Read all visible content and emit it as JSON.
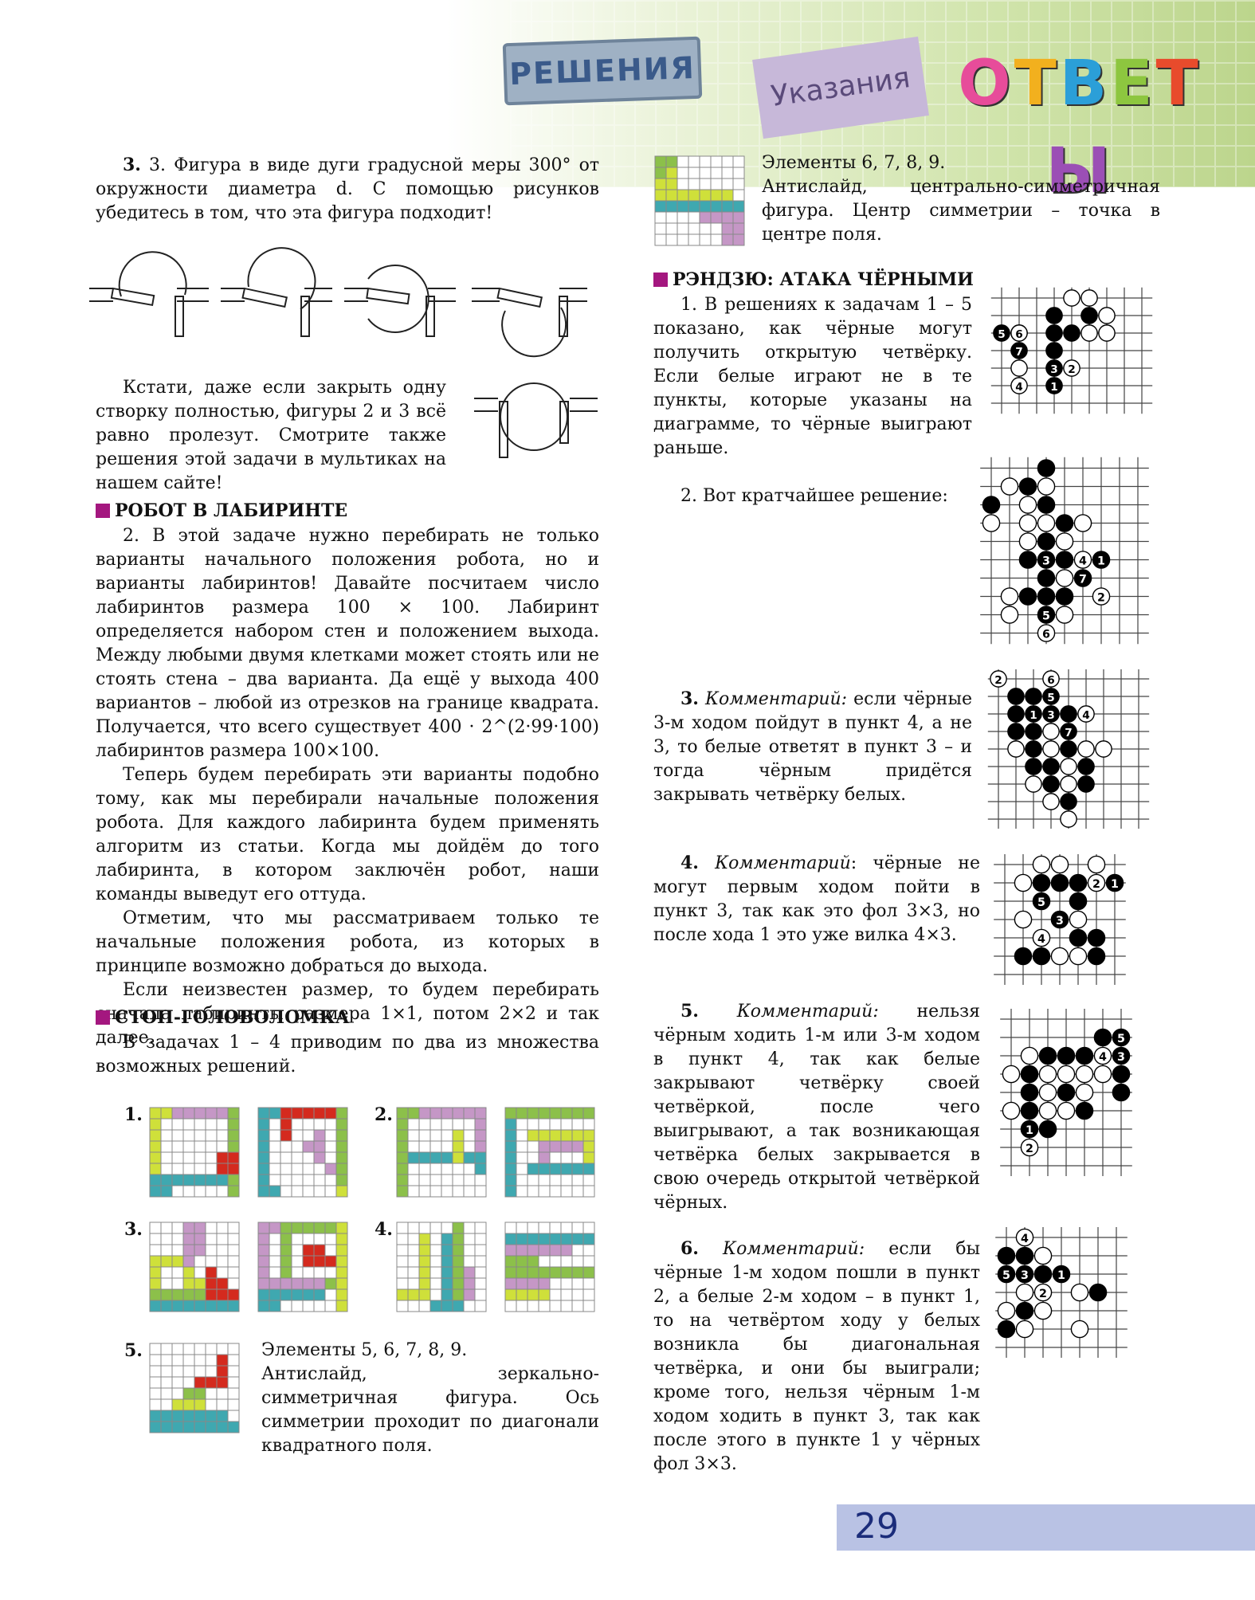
{
  "header": {
    "badge_solutions": "РЕШЕНИЯ",
    "badge_hints": "Указания",
    "badge_answers": "ОТВЕТЫ",
    "answer_letters": [
      "О",
      "Т",
      "В",
      "Е",
      "Т",
      "Ы"
    ],
    "answer_colors": [
      "#e74c9a",
      "#f2b01e",
      "#2b9fd8",
      "#8dc63f",
      "#e84b2c",
      "#9b4fb5"
    ]
  },
  "left": {
    "p3": "3. Фигура в виде дуги градусной меры 300° от окружности диаметра d. С помощью рисунков убедитесь в том, что эта фигура подходит!",
    "p3b": "Кстати, даже если закрыть одну створку полностью, фигуры 2 и 3 всё равно пролезут. Смотрите также решения этой задачи в мультиках на нашем сайте!",
    "sec_robot": "РОБОТ В ЛАБИРИНТЕ",
    "robot_p1": "2. В этой задаче нужно перебирать не только варианты начального положения робота, но и варианты лабиринтов! Давайте посчитаем число лабиринтов размера 100 × 100. Лабиринт определяется набором стен и положением выхода. Между любыми двумя клетками может стоять или не стоять стена – два варианта. Да ещё у выхода 400 вариантов – любой из отрезков на границе квадрата. Получается, что всего существует 400 · 2^(2·99·100) лабиринтов размера 100×100.",
    "robot_p2": "Теперь будем перебирать эти варианты подобно тому, как мы перебирали начальные положения робота. Для каждого лабиринта будем применять алгоритм из статьи. Когда мы дойдём до того лабиринта, в котором заключён робот, наши команды выведут его оттуда.",
    "robot_p3": "Отметим, что мы рассматриваем только те начальные положения робота, из которых в принципе возможно добраться до выхода.",
    "robot_p4": "Если неизвестен размер, то будем перебирать сначала лабиринты размера 1×1, потом 2×2 и так далее.",
    "sec_stop": "СТОП-ГОЛОВОЛОМКА",
    "stop_p1": "В задачах 1 – 4 приводим по два из множества возможных решений.",
    "lbl1": "1.",
    "lbl2": "2.",
    "lbl3": "3.",
    "lbl4": "4.",
    "lbl5": "5.",
    "p5a": "Элементы 5, 6, 7, 8, 9.",
    "p5b": "Антислайд, зеркально-симметричная фигура. Ось симметрии проходит по диагонали квадратного поля."
  },
  "right": {
    "p6a": "Элементы 6, 7, 8, 9.",
    "p6b": "Антислайд, центрально-симметричная фигура. Центр симметрии – точка в центре поля.",
    "sec_renju": "РЭНДЗЮ: АТАКА ЧЁРНЫМИ",
    "r1": "1. В решениях к задачам 1 – 5 показано, как чёрные могут получить открытую четвёрку. Если белые играют не в те пункты, которые указаны на диаграмме, то чёрные выиграют раньше.",
    "r2": "2. Вот кратчайшее решение:",
    "r3_num": "3.",
    "r3_c": "Комментарий:",
    "r3": "если чёрные 3-м ходом пойдут в пункт 4, а не 3, то белые ответят в пункт 3 – и тогда чёрным придётся закрывать четвёрку белых.",
    "r4_num": "4.",
    "r4_c": "Комментарий",
    "r4": ": чёрные не могут первым ходом пойти в пункт 3, так как это фол 3×3, но после хода 1 это уже вилка 4×3.",
    "r5_num": "5.",
    "r5_c": "Комментарий:",
    "r5": "нельзя чёрным ходить 1-м или 3-м ходом в пункт 4, так как белые закрывают четвёрку своей четвёркой, после чего выигрывают, а так возникающая четвёрка белых закрывается в свою очередь открытой четвёркой чёрных.",
    "r6_num": "6.",
    "r6_c": "Комментарий:",
    "r6": "если бы чёрные 1-м ходом пошли в пункт 2, а белые 2-м ходом – в пункт 1, то на четвёртом ходу у белых возникла бы диагональная четвёрка, и они бы выиграли; кроме того, нельзя чёрным 1-м ходом ходить в пункт 3, так как после этого в пункте 1 у чёрных фол 3×3."
  },
  "page_number": "29",
  "colors": {
    "magenta": "#a4177f",
    "lime": "#cfe03a",
    "teal": "#3fa8b0",
    "pink": "#c597c6",
    "red": "#d42a1e",
    "green": "#8cc04a"
  }
}
